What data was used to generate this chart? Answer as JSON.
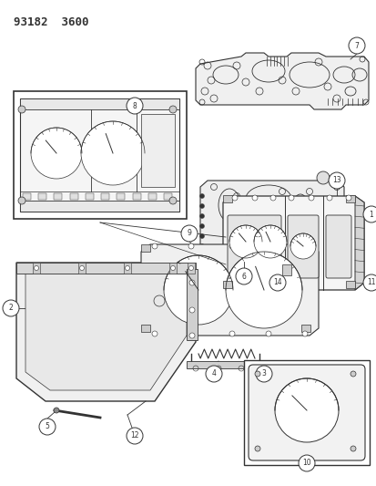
{
  "title": "93182  3600",
  "bg_color": "#ffffff",
  "line_color": "#333333",
  "title_fontsize": 9,
  "fig_width": 4.14,
  "fig_height": 5.33,
  "dpi": 100
}
